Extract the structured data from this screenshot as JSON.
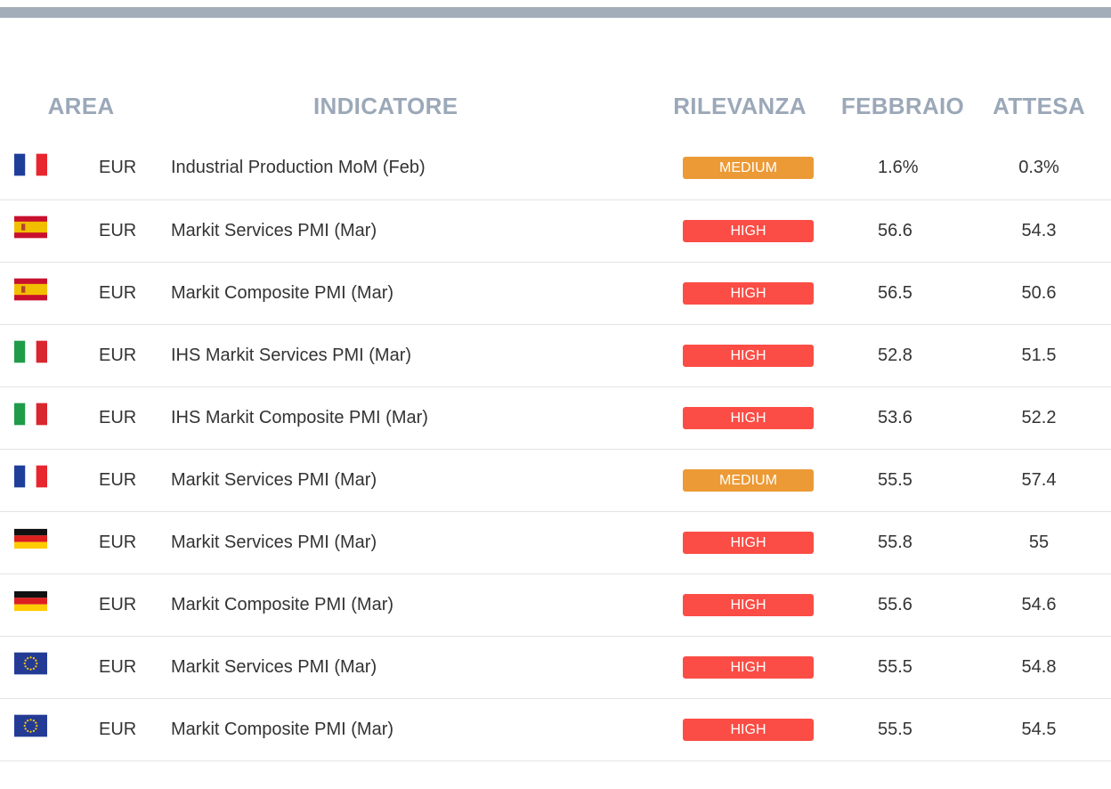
{
  "header": {
    "area": "AREA",
    "indicatore": "INDICATORE",
    "rilevanza": "RILEVANZA",
    "febbraio": "FEBBRAIO",
    "attesa": "ATTESA"
  },
  "colors": {
    "top_bar": "#a3adb9",
    "header_text": "#9ba8b8",
    "medium": "#ec9a36",
    "high": "#fb4d45"
  },
  "rows": [
    {
      "flag": "france-flag-icon",
      "area": "EUR",
      "indicator": "Industrial Production MoM (Feb)",
      "relevance": "MEDIUM",
      "febbraio": "1.6%",
      "attesa": "0.3%"
    },
    {
      "flag": "spain-flag-icon",
      "area": "EUR",
      "indicator": "Markit Services PMI (Mar)",
      "relevance": "HIGH",
      "febbraio": "56.6",
      "attesa": "54.3"
    },
    {
      "flag": "spain-flag-icon",
      "area": "EUR",
      "indicator": "Markit Composite PMI (Mar)",
      "relevance": "HIGH",
      "febbraio": "56.5",
      "attesa": "50.6"
    },
    {
      "flag": "italy-flag-icon",
      "area": "EUR",
      "indicator": "IHS Markit Services PMI (Mar)",
      "relevance": "HIGH",
      "febbraio": "52.8",
      "attesa": "51.5"
    },
    {
      "flag": "italy-flag-icon",
      "area": "EUR",
      "indicator": "IHS Markit Composite PMI (Mar)",
      "relevance": "HIGH",
      "febbraio": "53.6",
      "attesa": "52.2"
    },
    {
      "flag": "france-flag-icon",
      "area": "EUR",
      "indicator": "Markit Services PMI (Mar)",
      "relevance": "MEDIUM",
      "febbraio": "55.5",
      "attesa": "57.4"
    },
    {
      "flag": "germany-flag-icon",
      "area": "EUR",
      "indicator": "Markit Services PMI (Mar)",
      "relevance": "HIGH",
      "febbraio": "55.8",
      "attesa": "55"
    },
    {
      "flag": "germany-flag-icon",
      "area": "EUR",
      "indicator": "Markit Composite PMI (Mar)",
      "relevance": "HIGH",
      "febbraio": "55.6",
      "attesa": "54.6"
    },
    {
      "flag": "eu-flag-icon",
      "area": "EUR",
      "indicator": "Markit Services PMI (Mar)",
      "relevance": "HIGH",
      "febbraio": "55.5",
      "attesa": "54.8"
    },
    {
      "flag": "eu-flag-icon",
      "area": "EUR",
      "indicator": "Markit Composite PMI (Mar)",
      "relevance": "HIGH",
      "febbraio": "55.5",
      "attesa": "54.5"
    }
  ]
}
